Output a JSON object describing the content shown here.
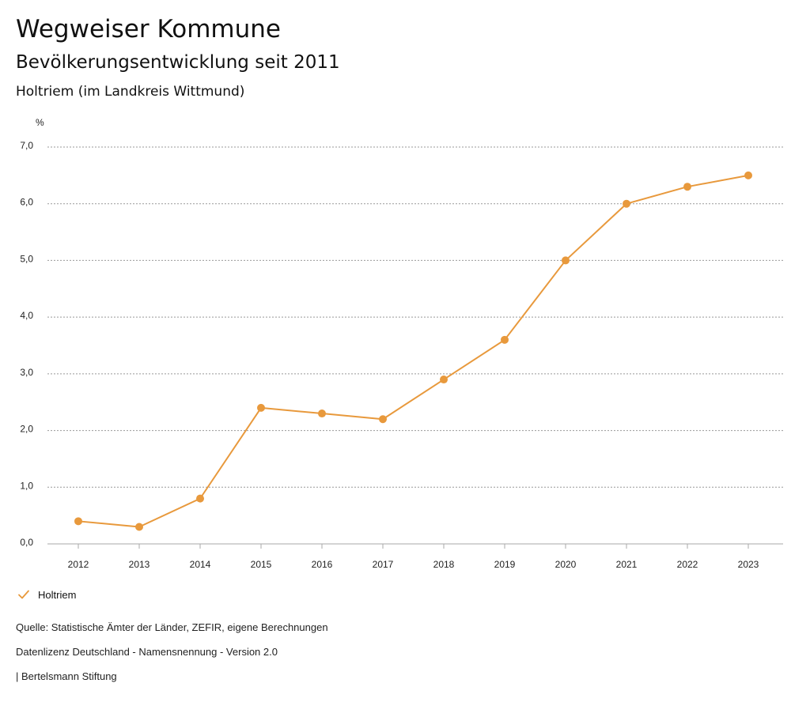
{
  "header": {
    "title": "Wegweiser Kommune",
    "subtitle": "Bevölkerungsentwicklung seit 2011",
    "region": "Holtriem (im Landkreis Wittmund)"
  },
  "chart_data": {
    "type": "line",
    "title": "Bevölkerungsentwicklung seit 2011",
    "ylabel": "%",
    "xlabel": "",
    "ylim": [
      0,
      7
    ],
    "yticks": [
      "0,0",
      "1,0",
      "2,0",
      "3,0",
      "4,0",
      "5,0",
      "6,0",
      "7,0"
    ],
    "grid": true,
    "categories": [
      "2012",
      "2013",
      "2014",
      "2015",
      "2016",
      "2017",
      "2018",
      "2019",
      "2020",
      "2021",
      "2022",
      "2023"
    ],
    "series": [
      {
        "name": "Holtriem",
        "values": [
          0.4,
          0.3,
          0.8,
          2.4,
          2.3,
          2.2,
          2.9,
          3.6,
          5.0,
          6.0,
          6.3,
          6.5
        ]
      }
    ],
    "colors": {
      "series": "#e8993c",
      "grid": "#999999",
      "axis": "#aaaaaa"
    }
  },
  "legend": {
    "label": "Holtriem"
  },
  "footer": {
    "source": "Quelle: Statistische Ämter der Länder, ZEFIR, eigene Berechnungen",
    "license": "Datenlizenz Deutschland - Namensnennung - Version 2.0",
    "publisher": "| Bertelsmann Stiftung"
  }
}
